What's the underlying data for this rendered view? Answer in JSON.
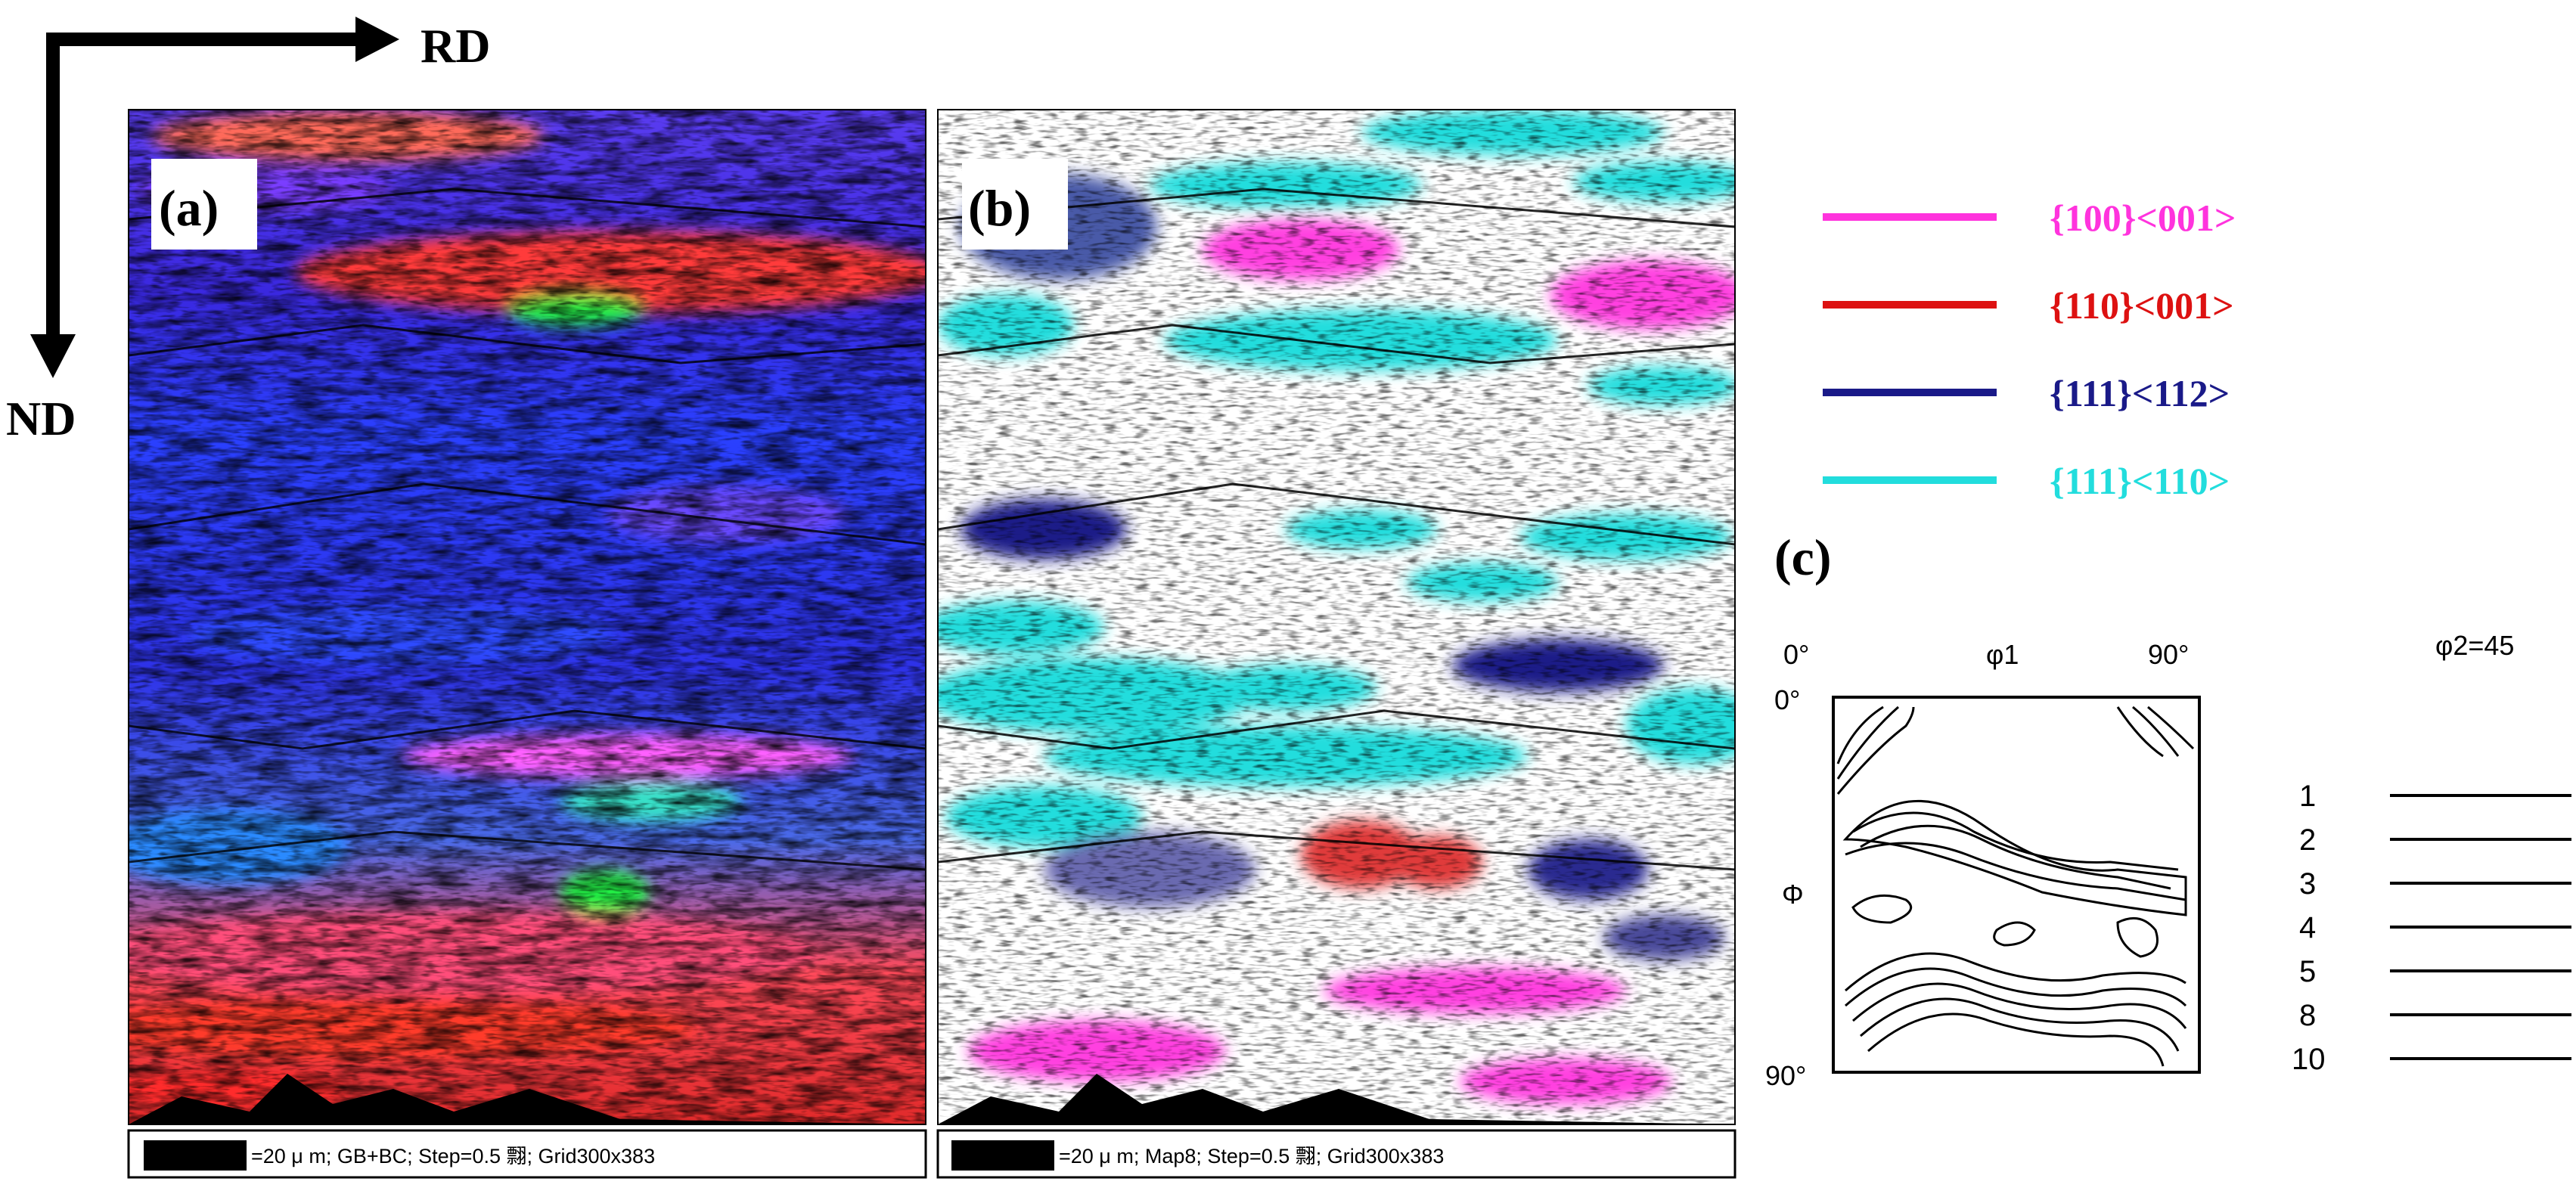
{
  "axes": {
    "rd": "RD",
    "nd": "ND"
  },
  "panels": {
    "a": {
      "label": "(a)",
      "caption": "=20 μ m; GB+BC; Step=0.5 翲; Grid300x383"
    },
    "b": {
      "label": "(b)",
      "caption": "=20 μ m; Map8; Step=0.5 翲; Grid300x383"
    },
    "c": {
      "label": "(c)"
    }
  },
  "legend": [
    {
      "text": "{100}<001>",
      "color": "#ff33dd"
    },
    {
      "text": "{110}<001>",
      "color": "#dd1111"
    },
    {
      "text": "{111}<112>",
      "color": "#1a1a88"
    },
    {
      "text": "{111}<110>",
      "color": "#22dddd"
    }
  ],
  "odf": {
    "phi1_start": "0°",
    "phi1_label": "φ1",
    "phi1_end": "90°",
    "phi_label": "Φ",
    "Phi_start": "0°",
    "Phi_end": "90°",
    "section": "φ2=45",
    "levels": [
      "1",
      "2",
      "3",
      "4",
      "5",
      "8",
      "10"
    ]
  }
}
